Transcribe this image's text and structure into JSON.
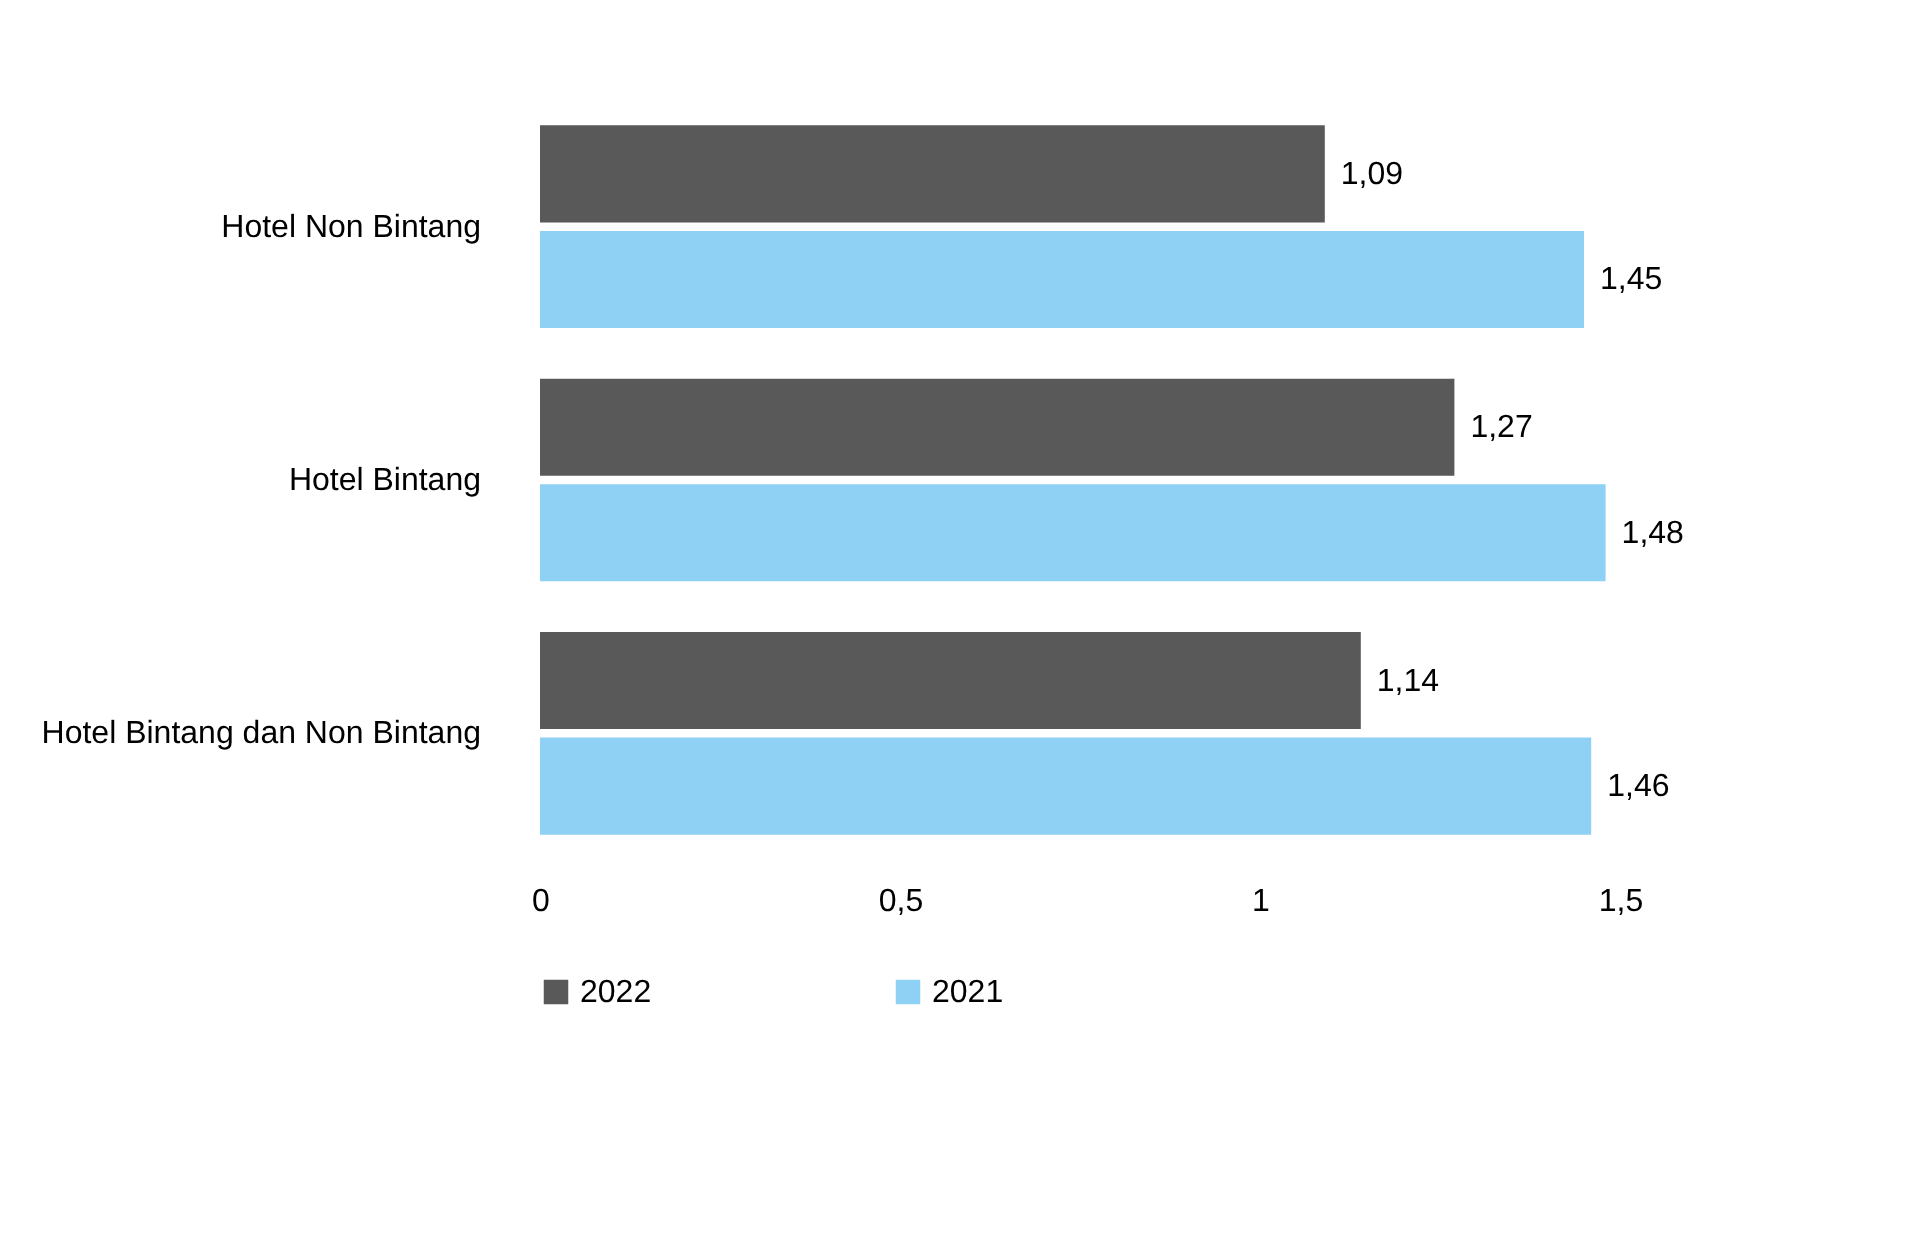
{
  "chart_data": {
    "type": "bar",
    "orientation": "horizontal",
    "categories": [
      "Hotel Non Bintang",
      "Hotel Bintang",
      "Hotel Bintang dan Non Bintang"
    ],
    "series": [
      {
        "name": "2022",
        "color": "#595959",
        "values": [
          1.09,
          1.27,
          1.14
        ],
        "value_labels": [
          "1,09",
          "1,27",
          "1,14"
        ]
      },
      {
        "name": "2021",
        "color": "#8fd0f5",
        "values": [
          1.45,
          1.48,
          1.46
        ],
        "value_labels": [
          "1,45",
          "1,48",
          "1,46"
        ]
      }
    ],
    "xlim": [
      0,
      1.5
    ],
    "xticks": [
      0,
      {
        "value": 0.5,
        "label": "0,5"
      },
      1,
      {
        "value": 1.5,
        "label": "1,5"
      }
    ],
    "grid": false,
    "legend": "bottom"
  }
}
